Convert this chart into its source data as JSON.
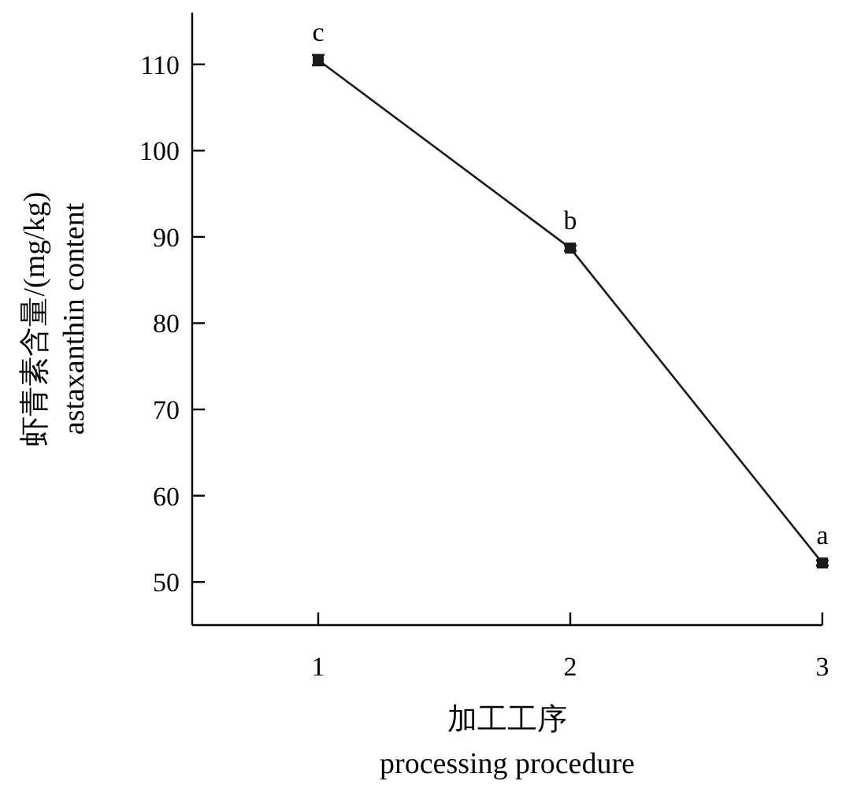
{
  "chart_data": {
    "type": "line",
    "x": [
      1,
      2,
      3
    ],
    "series": [
      {
        "color": "#1a1a1a",
        "values": [
          110.5,
          88.7,
          52.2
        ],
        "errors": [
          0.6,
          0.3,
          0.3
        ]
      }
    ],
    "xlim": [
      0.5,
      3
    ],
    "ylim": [
      45,
      116
    ],
    "xticks": [
      1,
      2,
      3
    ],
    "yticks": [
      50,
      60,
      70,
      80,
      90,
      100,
      110
    ],
    "xlabel": "加工工序\nprocessing procedure",
    "ylabel": "虾青素含量/(mg/kg)\nastaxanthin content",
    "marker": "square",
    "line_style": "solid",
    "grid": false,
    "annotations": [
      {
        "text": "c",
        "x": 1,
        "y": 110.5
      },
      {
        "text": "b",
        "x": 2,
        "y": 88.7
      },
      {
        "text": "a",
        "x": 3,
        "y": 52.2
      }
    ]
  }
}
